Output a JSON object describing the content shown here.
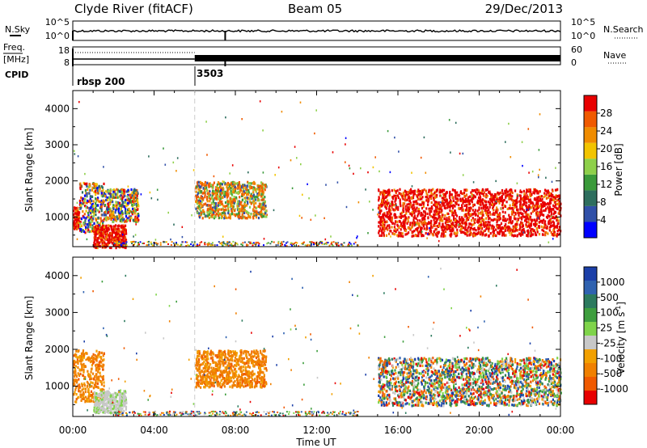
{
  "header": {
    "station": "Clyde River (fitACF)",
    "beam": "Beam 05",
    "date": "29/Dec/2013"
  },
  "summary_panel": {
    "left_label": "N.Sky",
    "left_ticks": [
      "10^5",
      "10^0"
    ],
    "right_label": "N.Search",
    "right_ticks": [
      "10^5",
      "10^0"
    ],
    "freq_label_1": "Freq.",
    "freq_label_2": "[MHz]",
    "freq_ticks": [
      "18",
      "8"
    ],
    "nave_label": "Nave",
    "nave_ticks": [
      "60",
      "0"
    ],
    "cpid_label": "CPID",
    "cpid_entries": [
      {
        "time_h": 0.0,
        "label": "rbsp 200"
      },
      {
        "time_h": 6.0,
        "label": "3503"
      }
    ]
  },
  "colors": {
    "power_scale": [
      "#0000ff",
      "#3050a8",
      "#2e6e5e",
      "#3a9a3a",
      "#8ed04a",
      "#f2c400",
      "#f08c00",
      "#f05a00",
      "#e80000"
    ],
    "velocity_scale": [
      "#1b3fa8",
      "#2f62b0",
      "#2c7a5e",
      "#3e9e3e",
      "#7fd44a",
      "#c8c8c8",
      "#f2a000",
      "#f08000",
      "#f05a00",
      "#e80000"
    ]
  },
  "chart_data": [
    {
      "type": "heatmap",
      "title": "Power",
      "xlabel": "",
      "ylabel": "Slant Range [km]",
      "xlim": [
        "00:00",
        "24:00"
      ],
      "ylim": [
        180,
        4500
      ],
      "x_ticks": [
        "00:00",
        "04:00",
        "08:00",
        "12:00",
        "16:00",
        "20:00",
        "00:00"
      ],
      "y_ticks": [
        "1000",
        "2000",
        "3000",
        "4000"
      ],
      "colorbar": {
        "label": "Power [dB]",
        "ticks": [
          "28",
          "24",
          "20",
          "16",
          "12",
          "8",
          "4"
        ]
      },
      "regions": [
        {
          "t": [
            0.0,
            0.3
          ],
          "r": [
            700,
            1300
          ],
          "level": "high"
        },
        {
          "t": [
            0.3,
            1.5
          ],
          "r": [
            600,
            2000
          ],
          "level": "mixed"
        },
        {
          "t": [
            1.0,
            2.6
          ],
          "r": [
            180,
            800
          ],
          "level": "high"
        },
        {
          "t": [
            1.5,
            3.2
          ],
          "r": [
            900,
            1800
          ],
          "level": "mixed"
        },
        {
          "t": [
            6.0,
            9.5
          ],
          "r": [
            1000,
            2000
          ],
          "level": "mid"
        },
        {
          "t": [
            15.0,
            24.0
          ],
          "r": [
            500,
            1800
          ],
          "level": "high"
        }
      ]
    },
    {
      "type": "heatmap",
      "title": "Velocity",
      "xlabel": "Time UT",
      "ylabel": "Slant Range [km]",
      "xlim": [
        "00:00",
        "24:00"
      ],
      "ylim": [
        180,
        4500
      ],
      "x_ticks": [
        "00:00",
        "04:00",
        "08:00",
        "12:00",
        "16:00",
        "20:00",
        "00:00"
      ],
      "y_ticks": [
        "1000",
        "2000",
        "3000",
        "4000"
      ],
      "colorbar": {
        "label": "Velocity [m s-1]",
        "label_main": "Velocity [m s",
        "label_sup": "-1",
        "label_end": "]",
        "ticks": [
          "1000",
          "500",
          "100",
          "25",
          "-25",
          "-100",
          "-500",
          "-1000"
        ]
      },
      "regions": [
        {
          "t": [
            0.0,
            1.5
          ],
          "r": [
            600,
            2000
          ],
          "level": "negative"
        },
        {
          "t": [
            1.0,
            2.6
          ],
          "r": [
            300,
            900
          ],
          "level": "near-zero"
        },
        {
          "t": [
            6.0,
            9.5
          ],
          "r": [
            1000,
            2000
          ],
          "level": "negative"
        },
        {
          "t": [
            15.0,
            24.0
          ],
          "r": [
            500,
            1800
          ],
          "level": "mixed"
        }
      ]
    }
  ]
}
